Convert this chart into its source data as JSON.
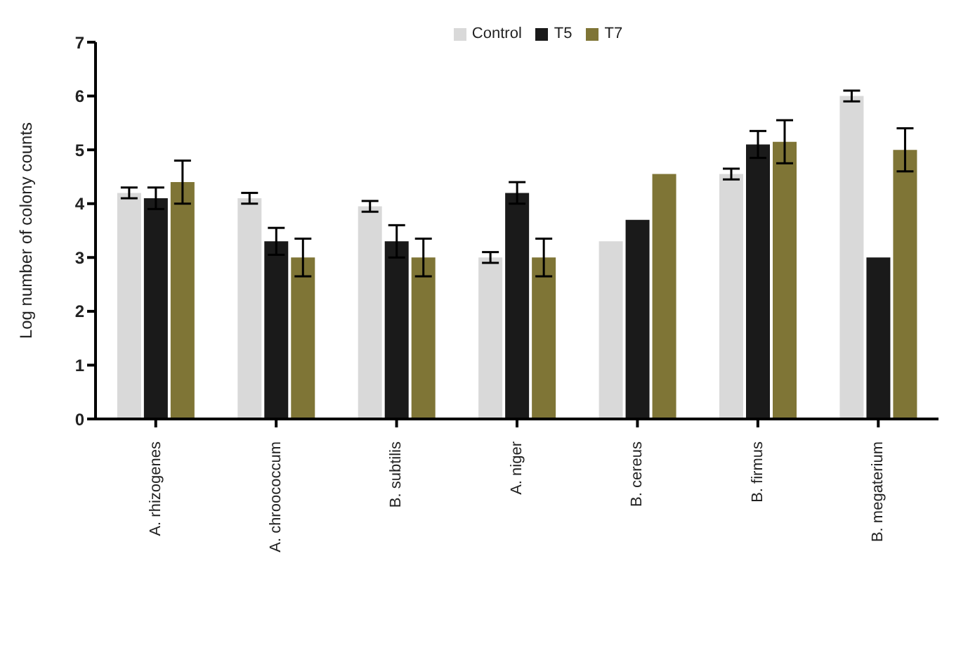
{
  "chart_data": {
    "type": "bar",
    "ylabel": "Log number of colony counts",
    "categories": [
      "A. rhizogenes",
      "A. chroococcum",
      "B. subtilis",
      "A. niger",
      "B. cereus",
      "B. firmus",
      "B. megaterium"
    ],
    "series": [
      {
        "name": "Control",
        "color": "#d9d9d9",
        "values": [
          4.2,
          4.1,
          3.95,
          3.0,
          3.3,
          4.55,
          6.0
        ],
        "errors": [
          0.1,
          0.1,
          0.1,
          0.1,
          null,
          0.1,
          0.1
        ]
      },
      {
        "name": "T5",
        "color": "#1a1a1a",
        "values": [
          4.1,
          3.3,
          3.3,
          4.2,
          3.7,
          5.1,
          3.0
        ],
        "errors": [
          0.2,
          0.25,
          0.3,
          0.2,
          null,
          0.25,
          null
        ]
      },
      {
        "name": "T7",
        "color": "#7f7536",
        "values": [
          4.4,
          3.0,
          3.0,
          3.0,
          4.55,
          5.15,
          5.0
        ],
        "errors": [
          0.4,
          0.35,
          0.35,
          0.35,
          null,
          0.4,
          0.4
        ]
      }
    ],
    "ylim": [
      0,
      7
    ],
    "yticks": [
      0,
      1,
      2,
      3,
      4,
      5,
      6,
      7
    ],
    "legend": "top",
    "grid": false
  }
}
